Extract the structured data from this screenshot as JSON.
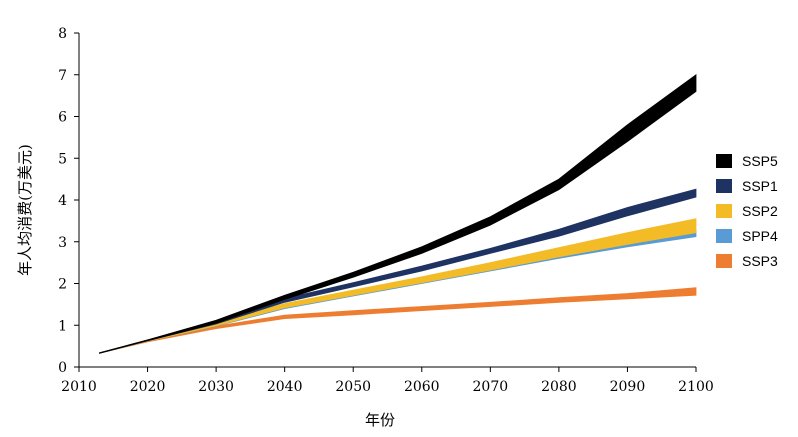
{
  "chart_data": {
    "type": "area",
    "title": "",
    "xlabel": "年份",
    "ylabel": "年人均消费(万美元)",
    "xlim": [
      2010,
      2100
    ],
    "ylim": [
      0,
      8
    ],
    "xticks": [
      "2010",
      "2020",
      "2030",
      "2040",
      "2050",
      "2060",
      "2070",
      "2080",
      "2090",
      "2100"
    ],
    "yticks": [
      "0",
      "1",
      "2",
      "3",
      "4",
      "5",
      "6",
      "7",
      "8"
    ],
    "grid": false,
    "legend_position": "right",
    "x": [
      2013,
      2020,
      2030,
      2040,
      2050,
      2060,
      2070,
      2080,
      2090,
      2100
    ],
    "series": [
      {
        "name": "SSP3",
        "color": "#ED7D31",
        "lower": [
          0.33,
          0.6,
          0.92,
          1.16,
          1.25,
          1.35,
          1.45,
          1.55,
          1.63,
          1.72
        ],
        "upper": [
          0.34,
          0.63,
          0.98,
          1.24,
          1.35,
          1.45,
          1.55,
          1.66,
          1.76,
          1.9
        ]
      },
      {
        "name": "SPP4",
        "color": "#5B9BD5",
        "lower": [
          0.33,
          0.62,
          0.98,
          1.4,
          1.7,
          2.0,
          2.3,
          2.6,
          2.88,
          3.12
        ],
        "upper": [
          0.34,
          0.64,
          1.05,
          1.5,
          1.8,
          2.1,
          2.4,
          2.7,
          2.98,
          3.27
        ]
      },
      {
        "name": "SSP2",
        "color": "#F3BC26",
        "lower": [
          0.33,
          0.62,
          0.99,
          1.42,
          1.72,
          2.02,
          2.32,
          2.64,
          2.94,
          3.22
        ],
        "upper": [
          0.34,
          0.64,
          1.06,
          1.52,
          1.84,
          2.16,
          2.5,
          2.86,
          3.22,
          3.55
        ]
      },
      {
        "name": "SSP1",
        "color": "#1F3363",
        "lower": [
          0.33,
          0.63,
          1.03,
          1.55,
          1.92,
          2.3,
          2.72,
          3.13,
          3.62,
          4.07
        ],
        "upper": [
          0.34,
          0.65,
          1.09,
          1.64,
          2.02,
          2.42,
          2.84,
          3.3,
          3.82,
          4.26
        ]
      },
      {
        "name": "SSP5",
        "color": "#000000",
        "lower": [
          0.33,
          0.63,
          1.05,
          1.62,
          2.15,
          2.72,
          3.4,
          4.25,
          5.4,
          6.6
        ],
        "upper": [
          0.34,
          0.65,
          1.12,
          1.72,
          2.27,
          2.88,
          3.6,
          4.5,
          5.8,
          7.0
        ]
      }
    ],
    "legend": [
      "SSP5",
      "SSP1",
      "SSP2",
      "SPP4",
      "SSP3"
    ]
  }
}
